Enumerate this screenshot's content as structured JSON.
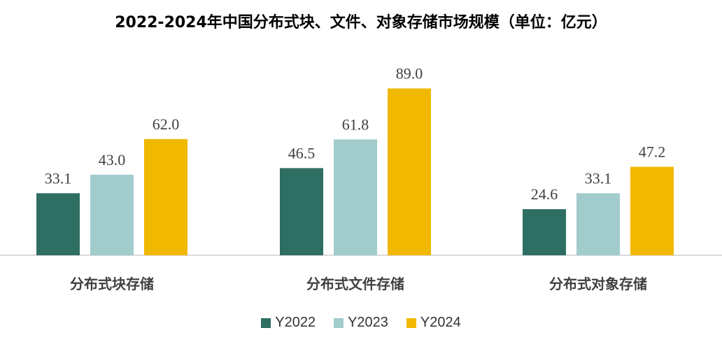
{
  "chart_data": {
    "type": "bar",
    "title": "2022-2024年中国分布式块、文件、对象存储市场规模（单位：亿元）",
    "categories": [
      "分布式块存储",
      "分布式文件存储",
      "分布式对象存储"
    ],
    "series": [
      {
        "name": "Y2022",
        "values": [
          33.1,
          46.5,
          24.6
        ],
        "color": "#2f6e63"
      },
      {
        "name": "Y2023",
        "values": [
          43.0,
          61.8,
          33.1
        ],
        "color": "#a2cbcc"
      },
      {
        "name": "Y2024",
        "values": [
          62.0,
          89.0,
          47.2
        ],
        "color": "#f0b800"
      }
    ],
    "ylim": [
      0,
      100
    ],
    "grid": false,
    "legend": "bottom"
  }
}
